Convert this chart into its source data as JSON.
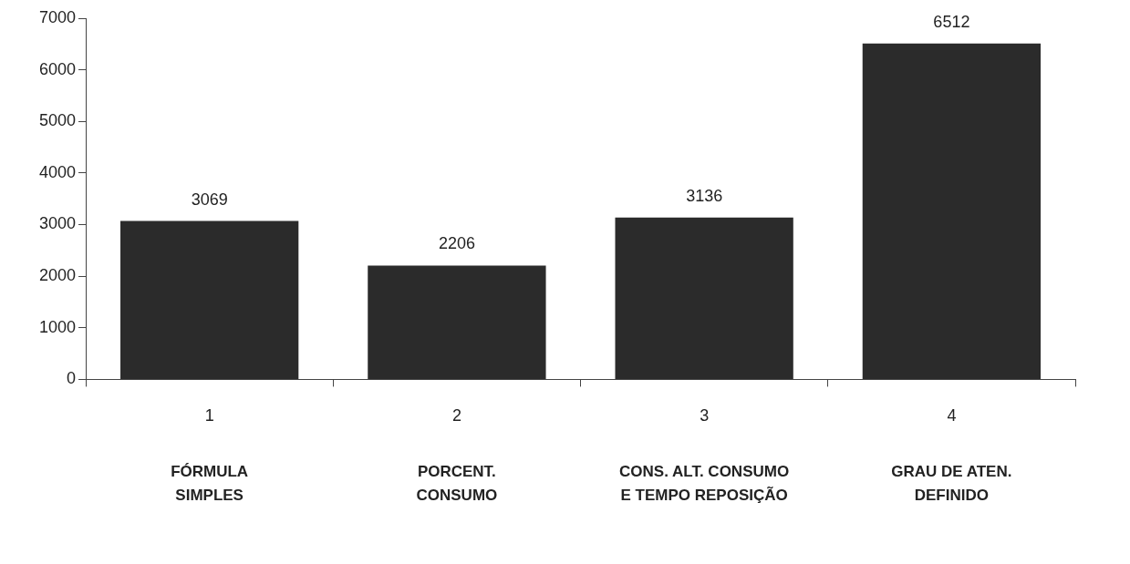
{
  "chart_data": {
    "type": "bar",
    "categories": [
      "1",
      "2",
      "3",
      "4"
    ],
    "values": [
      3069,
      2206,
      3136,
      6512
    ],
    "color": "#2b2b2b",
    "ylim": [
      0,
      7000
    ],
    "yticks": [
      0,
      1000,
      2000,
      3000,
      4000,
      5000,
      6000,
      7000
    ],
    "grid": false,
    "legend": false,
    "data_labels": true,
    "annotations": [
      "FÓRMULA\nSIMPLES",
      "PORCENT.\nCONSUMO",
      "CONS. ALT. CONSUMO\nE TEMPO REPOSIÇÃO",
      "GRAU DE ATEN.\nDEFINIDO"
    ]
  }
}
